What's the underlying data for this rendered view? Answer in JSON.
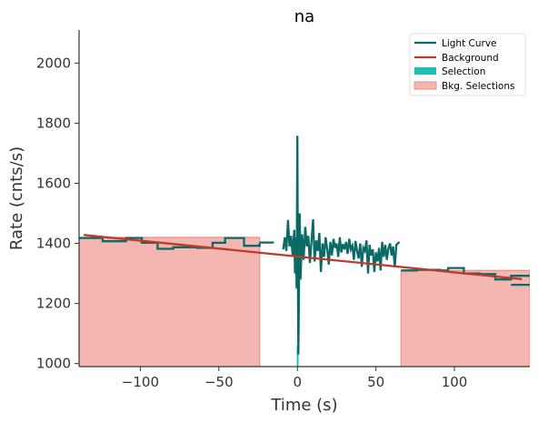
{
  "chart_data": {
    "type": "line",
    "title": "na",
    "xlabel": "Time (s)",
    "ylabel": "Rate (cnts/s)",
    "xlim": [
      -139,
      148
    ],
    "ylim": [
      990,
      2110
    ],
    "xticks": [
      -100,
      -50,
      0,
      50,
      100
    ],
    "yticks": [
      1000,
      1200,
      1400,
      1600,
      1800,
      2000
    ],
    "x_tick_labels": [
      "−100",
      "−50",
      "0",
      "50",
      "100"
    ],
    "y_tick_labels": [
      "1000",
      "1200",
      "1400",
      "1600",
      "1800",
      "2000"
    ],
    "grid": false,
    "legend": {
      "placement": "top-right",
      "entries": [
        "Light Curve",
        "Background",
        "Selection",
        "Bkg. Selections"
      ]
    },
    "colors": {
      "light_curve": "#0a6b66",
      "background": "#c0392b",
      "selection": "#1fbfb3",
      "bkg_selection_fill": "#f4b6b0",
      "bkg_selection_edge": "#ea8f87",
      "axis": "#333333"
    },
    "series": [
      {
        "name": "Light Curve",
        "kind": "step",
        "segments": [
          {
            "x": [
              -139,
              -124,
              -124,
              -109,
              -109,
              -99,
              -99,
              -89,
              -89,
              -79,
              -79,
              -64,
              -64,
              -54,
              -54,
              -46,
              -46,
              -34,
              -34,
              -24,
              -24
            ],
            "y": [
              1418,
              1418,
              1407,
              1407,
              1418,
              1418,
              1402,
              1402,
              1382,
              1382,
              1387,
              1387,
              1385,
              1385,
              1402,
              1402,
              1418,
              1418,
              1392,
              1392,
              1402
            ]
          },
          {
            "x": [
              -24,
              -15
            ],
            "y": [
              1403,
              1403
            ]
          },
          {
            "x": [
              -9,
              -8,
              -7,
              -6,
              -5,
              -4,
              -3,
              -2,
              -1.5,
              -1,
              -0.5,
              0,
              0.3,
              0.6,
              1,
              1.5,
              2,
              3,
              4,
              5,
              6,
              7,
              8,
              9,
              10,
              11,
              12,
              13,
              14,
              15,
              16,
              17,
              18,
              19,
              20,
              21,
              22,
              23,
              24,
              25,
              26,
              27,
              28,
              29,
              30,
              31,
              32,
              33,
              34,
              35,
              36,
              37,
              38,
              39,
              40,
              41,
              42,
              43,
              44,
              45,
              46,
              47,
              48,
              49,
              50,
              51,
              52,
              53,
              54,
              55,
              56,
              57,
              58,
              59,
              60,
              61,
              62,
              63,
              64,
              65
            ],
            "y": [
              1380,
              1420,
              1375,
              1478,
              1390,
              1425,
              1360,
              1445,
              1300,
              1420,
              1250,
              1758,
              1380,
              1030,
              1240,
              1500,
              1280,
              1430,
              1345,
              1455,
              1390,
              1425,
              1335,
              1408,
              1480,
              1340,
              1410,
              1375,
              1435,
              1305,
              1400,
              1355,
              1420,
              1380,
              1330,
              1405,
              1360,
              1415,
              1385,
              1400,
              1355,
              1420,
              1370,
              1398,
              1380,
              1405,
              1365,
              1415,
              1380,
              1392,
              1345,
              1408,
              1375,
              1350,
              1400,
              1322,
              1385,
              1375,
              1410,
              1300,
              1395,
              1360,
              1380,
              1305,
              1370,
              1340,
              1385,
              1310,
              1405,
              1355,
              1395,
              1345,
              1385,
              1400,
              1360,
              1390,
              1320,
              1395,
              1400,
              1405
            ]
          },
          {
            "x": [
              66,
              76,
              76,
              91,
              91,
              96,
              96,
              106,
              106,
              116,
              116,
              126,
              126,
              136,
              136,
              148
            ],
            "y": [
              1310,
              1310,
              1312,
              1312,
              1310,
              1310,
              1318,
              1318,
              1300,
              1300,
              1298,
              1298,
              1280,
              1280,
              1292,
              1292
            ]
          },
          {
            "x": [
              136,
              148,
              148
            ],
            "y": [
              1262,
              1262,
              1262
            ]
          }
        ]
      },
      {
        "name": "Background",
        "kind": "line",
        "x": [
          -136,
          143
        ],
        "y": [
          1428,
          1281
        ]
      }
    ],
    "selection": {
      "x_range": [
        -0.4,
        0.6
      ]
    },
    "bkg_selections": [
      {
        "x_range": [
          -139,
          -24
        ],
        "top": [
          1420,
          1402
        ]
      },
      {
        "x_range": [
          66,
          148
        ],
        "top": [
          1310,
          1262
        ]
      }
    ]
  }
}
